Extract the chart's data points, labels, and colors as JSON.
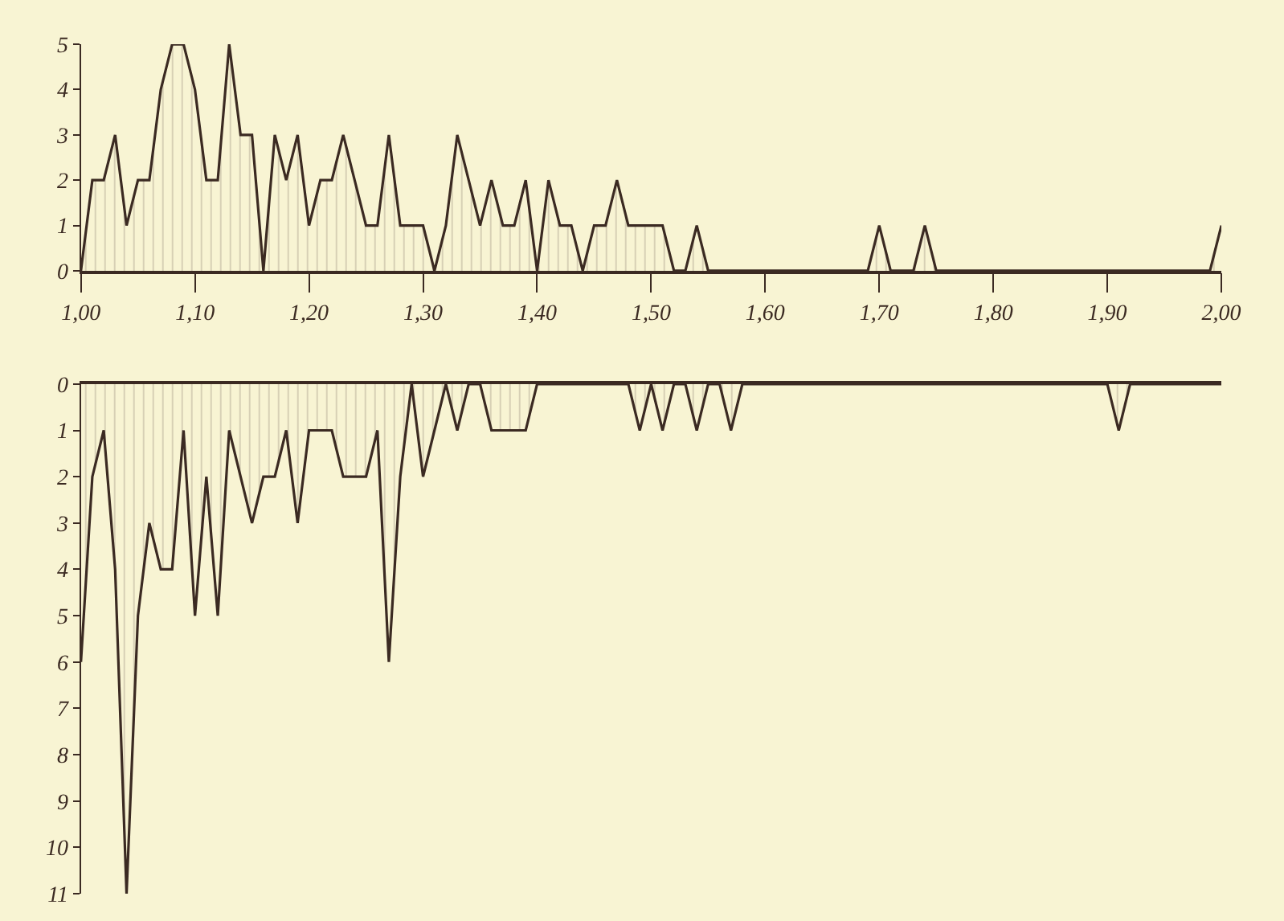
{
  "chart_data": [
    {
      "type": "area",
      "xlim": [
        1.0,
        2.0
      ],
      "ylim": [
        0,
        5
      ],
      "yticks": [
        0,
        1,
        2,
        3,
        4,
        5
      ],
      "xticks": [
        {
          "value": 1.0,
          "label": "1,00"
        },
        {
          "value": 1.1,
          "label": "1,10"
        },
        {
          "value": 1.2,
          "label": "1,20"
        },
        {
          "value": 1.3,
          "label": "1,30"
        },
        {
          "value": 1.4,
          "label": "1,40"
        },
        {
          "value": 1.5,
          "label": "1,50"
        },
        {
          "value": 1.6,
          "label": "1,60"
        },
        {
          "value": 1.7,
          "label": "1,70"
        },
        {
          "value": 1.8,
          "label": "1,80"
        },
        {
          "value": 1.9,
          "label": "1,90"
        },
        {
          "value": 2.0,
          "label": "2,00"
        }
      ],
      "series": [
        {
          "color": "#3b2a22",
          "x": [
            1.0,
            1.01,
            1.02,
            1.03,
            1.04,
            1.05,
            1.06,
            1.07,
            1.08,
            1.09,
            1.1,
            1.11,
            1.12,
            1.13,
            1.14,
            1.15,
            1.16,
            1.17,
            1.18,
            1.19,
            1.2,
            1.21,
            1.22,
            1.23,
            1.24,
            1.25,
            1.26,
            1.27,
            1.28,
            1.29,
            1.3,
            1.31,
            1.32,
            1.33,
            1.34,
            1.35,
            1.36,
            1.37,
            1.38,
            1.39,
            1.4,
            1.41,
            1.42,
            1.43,
            1.44,
            1.45,
            1.46,
            1.47,
            1.48,
            1.49,
            1.5,
            1.51,
            1.52,
            1.53,
            1.54,
            1.55,
            1.56,
            1.57,
            1.58,
            1.59,
            1.6,
            1.61,
            1.62,
            1.63,
            1.64,
            1.65,
            1.66,
            1.67,
            1.68,
            1.69,
            1.7,
            1.71,
            1.72,
            1.73,
            1.74,
            1.75,
            1.76,
            1.77,
            1.78,
            1.79,
            1.8,
            1.81,
            1.82,
            1.83,
            1.84,
            1.85,
            1.86,
            1.87,
            1.88,
            1.89,
            1.9,
            1.91,
            1.92,
            1.93,
            1.94,
            1.95,
            1.96,
            1.97,
            1.98,
            1.99,
            2.0
          ],
          "values": [
            0,
            2,
            2,
            3,
            1,
            2,
            2,
            4,
            5,
            5,
            4,
            2,
            2,
            5,
            3,
            3,
            0,
            3,
            2,
            3,
            1,
            2,
            2,
            3,
            2,
            1,
            1,
            3,
            1,
            1,
            1,
            0,
            1,
            3,
            2,
            1,
            2,
            1,
            1,
            2,
            0,
            2,
            1,
            1,
            0,
            1,
            1,
            2,
            1,
            1,
            1,
            1,
            0,
            0,
            1,
            0,
            0,
            0,
            0,
            0,
            0,
            0,
            0,
            0,
            0,
            0,
            0,
            0,
            0,
            0,
            1,
            0,
            0,
            0,
            1,
            0,
            0,
            0,
            0,
            0,
            0,
            0,
            0,
            0,
            0,
            0,
            0,
            0,
            0,
            0,
            0,
            0,
            0,
            0,
            0,
            0,
            0,
            0,
            0,
            0,
            1
          ]
        }
      ]
    },
    {
      "type": "area",
      "xlim": [
        1.0,
        2.0
      ],
      "ylim": [
        11,
        0
      ],
      "yticks": [
        0,
        1,
        2,
        3,
        4,
        5,
        6,
        7,
        8,
        9,
        10,
        11
      ],
      "tick_labels": "y",
      "series": [
        {
          "color": "#3b2a22",
          "x": [
            1.0,
            1.01,
            1.02,
            1.03,
            1.04,
            1.05,
            1.06,
            1.07,
            1.08,
            1.09,
            1.1,
            1.11,
            1.12,
            1.13,
            1.14,
            1.15,
            1.16,
            1.17,
            1.18,
            1.19,
            1.2,
            1.21,
            1.22,
            1.23,
            1.24,
            1.25,
            1.26,
            1.27,
            1.28,
            1.29,
            1.3,
            1.31,
            1.32,
            1.33,
            1.34,
            1.35,
            1.36,
            1.37,
            1.38,
            1.39,
            1.4,
            1.41,
            1.42,
            1.43,
            1.44,
            1.45,
            1.46,
            1.47,
            1.48,
            1.49,
            1.5,
            1.51,
            1.52,
            1.53,
            1.54,
            1.55,
            1.56,
            1.57,
            1.58,
            1.59,
            1.6,
            1.61,
            1.62,
            1.63,
            1.64,
            1.65,
            1.66,
            1.67,
            1.68,
            1.69,
            1.7,
            1.71,
            1.72,
            1.73,
            1.74,
            1.75,
            1.76,
            1.77,
            1.78,
            1.79,
            1.8,
            1.81,
            1.82,
            1.83,
            1.84,
            1.85,
            1.86,
            1.87,
            1.88,
            1.89,
            1.9,
            1.91,
            1.92,
            1.93,
            1.94,
            1.95,
            1.96,
            1.97,
            1.98,
            1.99,
            2.0
          ],
          "values": [
            6,
            2,
            1,
            4,
            11,
            5,
            3,
            4,
            4,
            1,
            5,
            2,
            5,
            1,
            2,
            3,
            2,
            2,
            1,
            3,
            1,
            1,
            1,
            2,
            2,
            2,
            1,
            6,
            2,
            0,
            2,
            1,
            0,
            1,
            0,
            0,
            1,
            1,
            1,
            1,
            0,
            0,
            0,
            0,
            0,
            0,
            0,
            0,
            0,
            1,
            0,
            1,
            0,
            0,
            1,
            0,
            0,
            1,
            0,
            0,
            0,
            0,
            0,
            0,
            0,
            0,
            0,
            0,
            0,
            0,
            0,
            0,
            0,
            0,
            0,
            0,
            0,
            0,
            0,
            0,
            0,
            0,
            0,
            0,
            0,
            0,
            0,
            0,
            0,
            0,
            0,
            1,
            0,
            0,
            0,
            0,
            0,
            0,
            0,
            0,
            0
          ]
        }
      ]
    }
  ]
}
